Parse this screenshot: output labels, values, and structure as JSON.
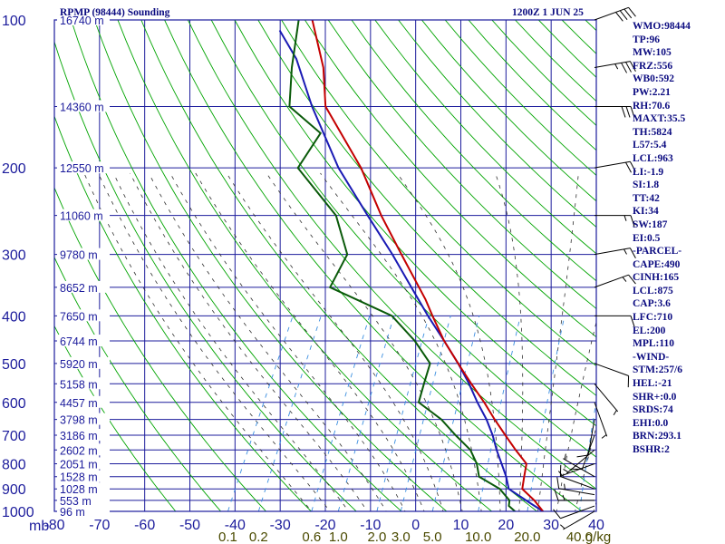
{
  "header": {
    "title": "RPMP (98444) Sounding",
    "valid_time": "1200Z  1 JUN 25"
  },
  "indices": [
    "WMO:98444",
    "TP:96",
    "MW:105",
    "FRZ:556",
    "WB0:592",
    "PW:2.21",
    "RH:70.6",
    "MAXT:35.5",
    "TH:5824",
    "L57:5.4",
    "LCL:963",
    "LI:-1.9",
    "SI:1.8",
    "TT:42",
    "KI:34",
    "SW:187",
    "EI:0.5",
    "-PARCEL-",
    "CAPE:490",
    "CINH:165",
    "LCL:875",
    "CAP:3.6",
    "LFC:710",
    "EL:200",
    "MPL:110",
    "-WIND-",
    "STM:257/6",
    "HEL:-21",
    "SHR+:0.0",
    "SRDS:74",
    "EHI:0.0",
    "BRN:293.1",
    "BSHR:2"
  ],
  "colors": {
    "frame": "#1c1c9c",
    "temperature": "#c40000",
    "dewpoint": "#0a5a0a",
    "parcel": "#1a1ab4",
    "dry_adiabat": "#00a400",
    "moist_adiabat": "#303030",
    "mixing_ratio": "#3a8ee0",
    "wind": "#000000"
  },
  "chart_data": {
    "type": "line",
    "title": "RPMP (98444) Sounding",
    "subtitle": "1200Z  1 JUN 25",
    "xlabel": "",
    "ylabel": "mb",
    "xlim": [
      -80,
      40
    ],
    "ylim": [
      1000,
      100
    ],
    "y_scale": "log",
    "x_ticks": [
      -80,
      -70,
      -60,
      -50,
      -40,
      -30,
      -20,
      -10,
      0,
      10,
      20,
      30,
      40
    ],
    "pressure_ticks": [
      100,
      200,
      300,
      400,
      500,
      600,
      700,
      800,
      900,
      1000
    ],
    "height_labels": [
      {
        "p": 100,
        "label": "16740 m"
      },
      {
        "p": 150,
        "label": "14360 m"
      },
      {
        "p": 200,
        "label": "12550 m"
      },
      {
        "p": 250,
        "label": "11060 m"
      },
      {
        "p": 300,
        "label": "9780 m"
      },
      {
        "p": 350,
        "label": "8652 m"
      },
      {
        "p": 400,
        "label": "7650 m"
      },
      {
        "p": 450,
        "label": "6744 m"
      },
      {
        "p": 500,
        "label": "5920 m"
      },
      {
        "p": 550,
        "label": "5158 m"
      },
      {
        "p": 600,
        "label": "4457 m"
      },
      {
        "p": 650,
        "label": "3798 m"
      },
      {
        "p": 700,
        "label": "3186 m"
      },
      {
        "p": 750,
        "label": "2602 m"
      },
      {
        "p": 800,
        "label": "2051 m"
      },
      {
        "p": 850,
        "label": "1528 m"
      },
      {
        "p": 900,
        "label": "1028 m"
      },
      {
        "p": 950,
        "label": "553 m"
      },
      {
        "p": 1000,
        "label": "96 m"
      }
    ],
    "mixing_ratio_labels": [
      "0.1",
      "0.2",
      "0.6",
      "1.0",
      "2.0",
      "3.0",
      "5.0",
      "10.0",
      "20.0",
      "40.0",
      "g/kg"
    ],
    "series": [],
    "temperature": [
      [
        1000,
        28.2
      ],
      [
        950,
        25
      ],
      [
        900,
        21
      ],
      [
        850,
        20
      ],
      [
        800,
        19
      ],
      [
        750,
        15
      ],
      [
        700,
        11
      ],
      [
        650,
        6.8
      ],
      [
        600,
        2.5
      ],
      [
        550,
        -2.5
      ],
      [
        500,
        -7.8
      ],
      [
        450,
        -13.5
      ],
      [
        400,
        -19
      ],
      [
        370,
        -22.5
      ],
      [
        300,
        -33
      ],
      [
        250,
        -42
      ],
      [
        200,
        -52
      ],
      [
        150,
        -67
      ],
      [
        125,
        -72
      ],
      [
        100,
        -80
      ]
    ],
    "dewpoint": [
      [
        1000,
        22
      ],
      [
        975,
        20
      ],
      [
        950,
        19.5
      ],
      [
        900,
        16
      ],
      [
        850,
        10
      ],
      [
        800,
        8
      ],
      [
        750,
        5
      ],
      [
        700,
        0
      ],
      [
        650,
        -5
      ],
      [
        600,
        -12
      ],
      [
        550,
        -13
      ],
      [
        500,
        -14
      ],
      [
        450,
        -20
      ],
      [
        400,
        -28
      ],
      [
        350,
        -45
      ],
      [
        300,
        -45
      ],
      [
        250,
        -52
      ],
      [
        200,
        -66
      ],
      [
        170,
        -65
      ],
      [
        150,
        -75
      ],
      [
        125,
        -79
      ],
      [
        100,
        -83
      ]
    ],
    "parcel": [
      [
        1000,
        28.2
      ],
      [
        963,
        24.5
      ],
      [
        900,
        18
      ],
      [
        850,
        16
      ],
      [
        800,
        13.5
      ],
      [
        750,
        10.8
      ],
      [
        700,
        8.2
      ],
      [
        650,
        5
      ],
      [
        600,
        1
      ],
      [
        550,
        -3
      ],
      [
        500,
        -7.8
      ],
      [
        450,
        -13.5
      ],
      [
        400,
        -20
      ],
      [
        350,
        -27
      ],
      [
        300,
        -35
      ],
      [
        250,
        -45
      ],
      [
        200,
        -57
      ],
      [
        150,
        -70
      ],
      [
        120,
        -79
      ],
      [
        105,
        -86
      ]
    ],
    "wind_barbs": [
      {
        "p": 1000,
        "dir": 240,
        "spd": 5
      },
      {
        "p": 975,
        "dir": 250,
        "spd": 10
      },
      {
        "p": 950,
        "dir": 270,
        "spd": 15
      },
      {
        "p": 925,
        "dir": 280,
        "spd": 15
      },
      {
        "p": 900,
        "dir": 290,
        "spd": 10
      },
      {
        "p": 850,
        "dir": 300,
        "spd": 5
      },
      {
        "p": 800,
        "dir": 250,
        "spd": 5
      },
      {
        "p": 750,
        "dir": 230,
        "spd": 5
      },
      {
        "p": 700,
        "dir": 200,
        "spd": 10
      },
      {
        "p": 650,
        "dir": 190,
        "spd": 10
      },
      {
        "p": 600,
        "dir": 160,
        "spd": 5
      },
      {
        "p": 550,
        "dir": 140,
        "spd": 5
      },
      {
        "p": 500,
        "dir": 110,
        "spd": 10
      },
      {
        "p": 400,
        "dir": 90,
        "spd": 10
      },
      {
        "p": 350,
        "dir": 70,
        "spd": 15
      },
      {
        "p": 300,
        "dir": 80,
        "spd": 15
      },
      {
        "p": 250,
        "dir": 90,
        "spd": 15
      },
      {
        "p": 200,
        "dir": 80,
        "spd": 20
      },
      {
        "p": 150,
        "dir": 90,
        "spd": 30
      },
      {
        "p": 125,
        "dir": 80,
        "spd": 35
      },
      {
        "p": 100,
        "dir": 70,
        "spd": 40
      }
    ]
  }
}
